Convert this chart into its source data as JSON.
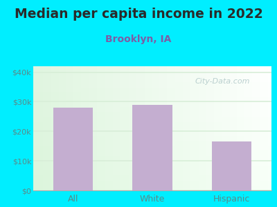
{
  "title": "Median per capita income in 2022",
  "subtitle": "Brooklyn, IA",
  "categories": [
    "All",
    "White",
    "Hispanic"
  ],
  "values": [
    28000,
    29000,
    16500
  ],
  "bar_color": "#c4aed0",
  "title_fontsize": 13.5,
  "title_color": "#2a2a2a",
  "subtitle_fontsize": 10,
  "subtitle_color": "#7b5ea7",
  "tick_label_color": "#5a8a8a",
  "background_color": "#00eeff",
  "ylim": [
    0,
    42000
  ],
  "yticks": [
    0,
    10000,
    20000,
    30000,
    40000
  ],
  "ytick_labels": [
    "$0",
    "$10k",
    "$20k",
    "$30k",
    "$40k"
  ],
  "watermark": "City-Data.com",
  "grid_color": "#d8eed8"
}
